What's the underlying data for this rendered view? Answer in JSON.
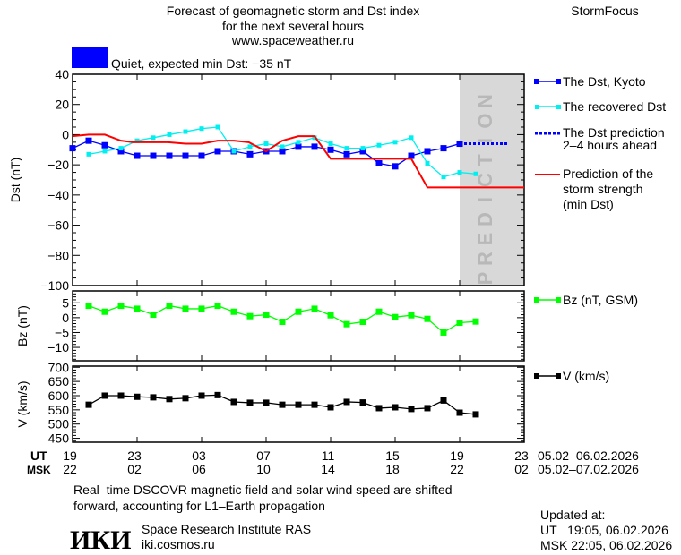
{
  "header": {
    "title_lines": [
      "Forecast of geomagnetic storm and Dst index",
      "for the next several hours",
      "www.spaceweather.ru"
    ],
    "brand": "StormFocus",
    "status_color": "#0000ff",
    "status_text": "Quiet, expected min Dst: −35 nT"
  },
  "prediction_band_label": "PREDICTION",
  "time_axis": {
    "ut_label": "UT",
    "msk_label": "MSK",
    "ut_ticks": [
      "19",
      "23",
      "03",
      "07",
      "11",
      "15",
      "19",
      "23"
    ],
    "msk_ticks": [
      "22",
      "02",
      "06",
      "10",
      "14",
      "18",
      "22",
      "02"
    ],
    "ut_dates": "05.02–06.02.2026",
    "msk_dates": "05.02–07.02.2026"
  },
  "footer": {
    "note_lines": [
      "Real–time DSCOVR magnetic field and solar wind speed are shifted",
      "forward, accounting for L1–Earth propagation"
    ],
    "institute": "Space Research Institute RAS",
    "site": "iki.cosmos.ru",
    "logo_text": "ИКИ",
    "updated_label": "Updated at:",
    "updated_ut": "UT   19:05, 06.02.2026",
    "updated_msk": "MSK 22:05, 06.02.2026"
  },
  "chart_data": [
    {
      "type": "line",
      "ylabel": "Dst (nT)",
      "ylim": [
        -100,
        40
      ],
      "yticks": [
        40,
        20,
        0,
        -20,
        -40,
        -60,
        -80,
        -100
      ],
      "xlim": [
        "05.02 19:00",
        "06.02 23:00"
      ],
      "prediction_start": "06.02 19:00",
      "series": [
        {
          "name": "The Dst, Kyoto",
          "color": "#0000ff",
          "marker": "square-large",
          "x": [
            "05.02 19:00",
            "05.02 20:00",
            "05.02 21:00",
            "05.02 22:00",
            "05.02 23:00",
            "06.02 00:00",
            "06.02 01:00",
            "06.02 02:00",
            "06.02 03:00",
            "06.02 04:00",
            "06.02 05:00",
            "06.02 06:00",
            "06.02 07:00",
            "06.02 08:00",
            "06.02 09:00",
            "06.02 10:00",
            "06.02 11:00",
            "06.02 12:00",
            "06.02 13:00",
            "06.02 14:00",
            "06.02 15:00",
            "06.02 16:00",
            "06.02 17:00",
            "06.02 18:00",
            "06.02 19:00"
          ],
          "y": [
            -9,
            -4,
            -7,
            -11,
            -14,
            -14,
            -14,
            -14,
            -14,
            -11,
            -11,
            -13,
            -11,
            -11,
            -8,
            -8,
            -10,
            -13,
            -11,
            -19,
            -21,
            -14,
            -11,
            -9,
            -6
          ]
        },
        {
          "name": "The recovered Dst",
          "color": "#00f0f0",
          "marker": "square-small",
          "x": [
            "05.02 20:00",
            "05.02 21:00",
            "05.02 22:00",
            "05.02 23:00",
            "06.02 00:00",
            "06.02 01:00",
            "06.02 02:00",
            "06.02 03:00",
            "06.02 04:00",
            "06.02 05:00",
            "06.02 06:00",
            "06.02 07:00",
            "06.02 08:00",
            "06.02 09:00",
            "06.02 10:00",
            "06.02 11:00",
            "06.02 12:00",
            "06.02 13:00",
            "06.02 14:00",
            "06.02 15:00",
            "06.02 16:00",
            "06.02 17:00",
            "06.02 18:00",
            "06.02 19:00",
            "06.02 20:00"
          ],
          "y": [
            -13,
            -11,
            -9,
            -4,
            -2,
            0,
            2,
            4,
            5,
            -11,
            -8,
            -6,
            -8,
            -5,
            -2,
            -6,
            -9,
            -9,
            -7,
            -5,
            -2,
            -19,
            -28,
            -25,
            -26
          ]
        },
        {
          "name": "The Dst prediction 2–4 hours ahead",
          "color": "#0000ff",
          "style": "dotted",
          "x": [
            "06.02 19:00",
            "06.02 22:00"
          ],
          "y": [
            -6,
            -6
          ]
        },
        {
          "name": "Prediction of the storm strength (min Dst)",
          "color": "#ff0000",
          "style": "solid",
          "x": [
            "05.02 19:00",
            "05.02 20:00",
            "05.02 21:00",
            "05.02 22:00",
            "05.02 22:45",
            "06.02 00:55",
            "06.02 02:00",
            "06.02 03:00",
            "06.02 04:00",
            "06.02 05:00",
            "06.02 05:55",
            "06.02 07:00",
            "06.02 08:00",
            "06.02 09:00",
            "06.02 10:00",
            "06.02 11:00",
            "06.02 16:00",
            "06.02 17:00",
            "06.02 23:00"
          ],
          "y": [
            -1,
            0,
            0,
            -4,
            -5,
            -5,
            -6,
            -6,
            -4,
            -4,
            -5,
            -11,
            -4,
            -1,
            -1,
            -16,
            -16,
            -35,
            -35
          ]
        }
      ],
      "legend_placement": "right"
    },
    {
      "type": "line",
      "ylabel": "Bz (nT)",
      "ylim": [
        -14.5,
        9
      ],
      "yticks": [
        5,
        0,
        -5,
        -10
      ],
      "series": [
        {
          "name": "Bz (nT, GSM)",
          "color": "#00ff00",
          "marker": "square-large",
          "x": [
            "05.02 20:00",
            "05.02 21:00",
            "05.02 22:00",
            "05.02 23:00",
            "06.02 00:00",
            "06.02 01:00",
            "06.02 02:00",
            "06.02 03:00",
            "06.02 04:00",
            "06.02 05:00",
            "06.02 06:00",
            "06.02 07:00",
            "06.02 08:00",
            "06.02 09:00",
            "06.02 10:00",
            "06.02 11:00",
            "06.02 12:00",
            "06.02 13:00",
            "06.02 14:00",
            "06.02 15:00",
            "06.02 16:00",
            "06.02 17:00",
            "06.02 18:00",
            "06.02 19:00",
            "06.02 20:00"
          ],
          "y": [
            4,
            2,
            4,
            3,
            1,
            4,
            3,
            3,
            4,
            2,
            0.5,
            1,
            -1.4,
            2,
            3,
            0.8,
            -2.2,
            -1.4,
            2,
            0.2,
            0.8,
            -0.4,
            -5,
            -1.7,
            -1.3
          ]
        }
      ]
    },
    {
      "type": "line",
      "ylabel": "V (km/s)",
      "ylim": [
        436,
        704
      ],
      "yticks": [
        700,
        650,
        600,
        550,
        500,
        450
      ],
      "series": [
        {
          "name": "V (km/s)",
          "color": "#000000",
          "marker": "square-large",
          "x": [
            "05.02 20:00",
            "05.02 21:00",
            "05.02 22:00",
            "05.02 23:00",
            "06.02 00:00",
            "06.02 01:00",
            "06.02 02:00",
            "06.02 03:00",
            "06.02 04:00",
            "06.02 05:00",
            "06.02 06:00",
            "06.02 07:00",
            "06.02 08:00",
            "06.02 09:00",
            "06.02 10:00",
            "06.02 11:00",
            "06.02 12:00",
            "06.02 13:00",
            "06.02 14:00",
            "06.02 15:00",
            "06.02 16:00",
            "06.02 17:00",
            "06.02 18:00",
            "06.02 19:00",
            "06.02 20:00"
          ],
          "y": [
            568,
            600,
            600,
            596,
            594,
            588,
            591,
            600,
            602,
            578,
            575,
            575,
            568,
            568,
            568,
            559,
            578,
            576,
            556,
            559,
            553,
            556,
            583,
            540,
            534
          ]
        }
      ]
    }
  ]
}
